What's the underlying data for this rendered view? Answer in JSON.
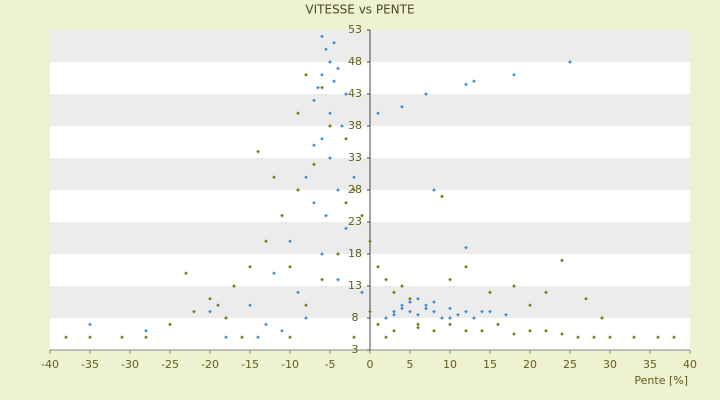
{
  "chart_data": {
    "type": "scatter",
    "title": "VITESSE vs PENTE",
    "x_label": "Pente [%]",
    "xlim": [
      -40,
      40
    ],
    "xticks": [
      -40,
      -35,
      -30,
      -25,
      -20,
      -15,
      -10,
      -5,
      0,
      5,
      10,
      15,
      20,
      25,
      30,
      35,
      40
    ],
    "ylim": [
      3,
      53
    ],
    "yticks": [
      3,
      8,
      13,
      18,
      23,
      28,
      33,
      38,
      43,
      48,
      53
    ],
    "bands": true,
    "series": [
      {
        "color": "#3d8fd6",
        "x": [
          -5,
          -6,
          -4.5,
          -5.5,
          -6.5,
          -4,
          -7,
          -5,
          -3.5,
          -6,
          -5,
          -8,
          -4,
          -7,
          -5.5,
          -10,
          -12,
          -9,
          -15,
          -20,
          -6,
          -3,
          -2,
          -8,
          -18,
          -14,
          -35,
          -28,
          -11,
          -4,
          2,
          3,
          4,
          5,
          6,
          7,
          8,
          9,
          10,
          11,
          12,
          13,
          14,
          5,
          7,
          3,
          6,
          8,
          10,
          4,
          15,
          17,
          25,
          18,
          13,
          12,
          7,
          4,
          1,
          8,
          12,
          -1,
          -13,
          -7,
          -3,
          -6,
          -4.5
        ],
        "y": [
          48,
          46,
          45,
          50,
          44,
          47,
          42,
          40,
          38,
          36,
          33,
          30,
          28,
          26,
          24,
          20,
          15,
          12,
          10,
          9,
          18,
          22,
          30,
          8,
          5,
          5,
          7,
          6,
          6,
          14,
          8,
          9,
          10,
          9,
          8.5,
          9.5,
          9,
          8,
          9.5,
          8.5,
          9,
          8,
          9,
          10.5,
          10,
          8.5,
          11,
          10.5,
          8,
          9.5,
          9,
          8.5,
          48,
          46,
          45,
          44.5,
          43,
          41,
          40,
          28,
          19,
          12,
          7,
          35,
          43,
          52,
          51
        ]
      },
      {
        "color": "#7a7a12",
        "x": [
          -6,
          -5,
          -7,
          -9,
          -11,
          -13,
          -15,
          -17,
          -20,
          -22,
          -25,
          -28,
          -31,
          -35,
          -38,
          -12,
          -14,
          -3,
          -2,
          -1,
          0,
          1,
          2,
          3,
          4,
          5,
          6,
          8,
          10,
          12,
          14,
          16,
          18,
          20,
          22,
          24,
          26,
          28,
          30,
          33,
          36,
          38,
          10,
          12,
          15,
          18,
          20,
          22,
          24,
          27,
          29,
          -18,
          -16,
          -10,
          -8,
          -6,
          -4,
          -10,
          -9,
          -8,
          -3,
          0,
          1,
          3,
          6,
          9,
          -23,
          -19,
          -2,
          2
        ],
        "y": [
          44,
          38,
          32,
          28,
          24,
          20,
          16,
          13,
          11,
          9,
          7,
          5,
          5,
          5,
          5,
          30,
          34,
          36,
          28,
          24,
          20,
          16,
          14,
          12,
          13,
          11,
          7,
          6,
          7,
          6,
          6,
          7,
          5.5,
          6,
          6,
          5.5,
          5,
          5,
          5,
          5,
          5,
          5,
          14,
          16,
          12,
          13,
          10,
          12,
          17,
          11,
          8,
          8,
          5,
          5,
          10,
          14,
          18,
          16,
          40,
          46,
          26,
          9,
          7,
          6,
          6.5,
          27,
          15,
          10,
          5,
          5
        ]
      }
    ]
  }
}
